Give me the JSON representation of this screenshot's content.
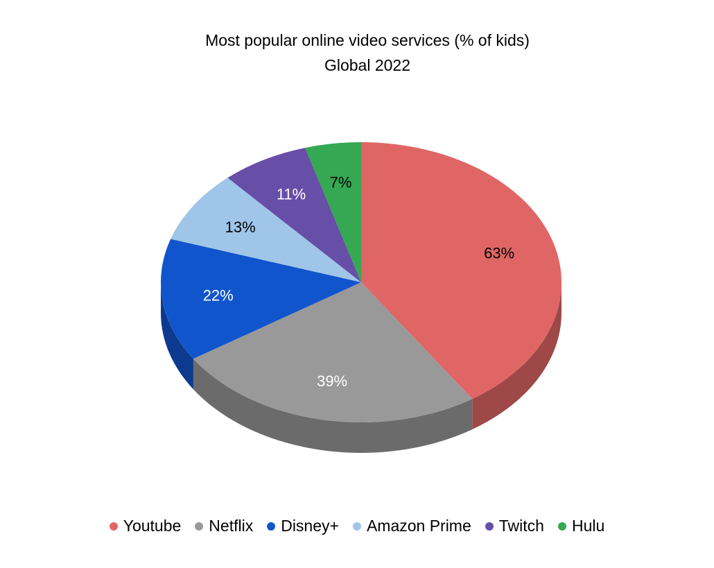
{
  "chart_data": {
    "type": "pie",
    "title": "Most popular online video services (% of kids)",
    "subtitle": "Global 2022",
    "slices": [
      {
        "name": "Youtube",
        "value": 63,
        "label": "63%",
        "color": "#e06666",
        "side_color": "#9e4848",
        "label_color": "#000000"
      },
      {
        "name": "Netflix",
        "value": 39,
        "label": "39%",
        "color": "#999999",
        "side_color": "#6b6b6b",
        "label_color": "#ffffff"
      },
      {
        "name": "Disney+",
        "value": 22,
        "label": "22%",
        "color": "#1155cc",
        "side_color": "#0b3a8e",
        "label_color": "#ffffff"
      },
      {
        "name": "Amazon Prime",
        "value": 13,
        "label": "13%",
        "color": "#9fc5e8",
        "side_color": "#6f8aa3",
        "label_color": "#000000"
      },
      {
        "name": "Twitch",
        "value": 11,
        "label": "11%",
        "color": "#674ea7",
        "side_color": "#483675",
        "label_color": "#ffffff"
      },
      {
        "name": "Hulu",
        "value": 7,
        "label": "7%",
        "color": "#34a853",
        "side_color": "#24763a",
        "label_color": "#000000"
      }
    ],
    "legend_position": "bottom",
    "style": "3d"
  }
}
